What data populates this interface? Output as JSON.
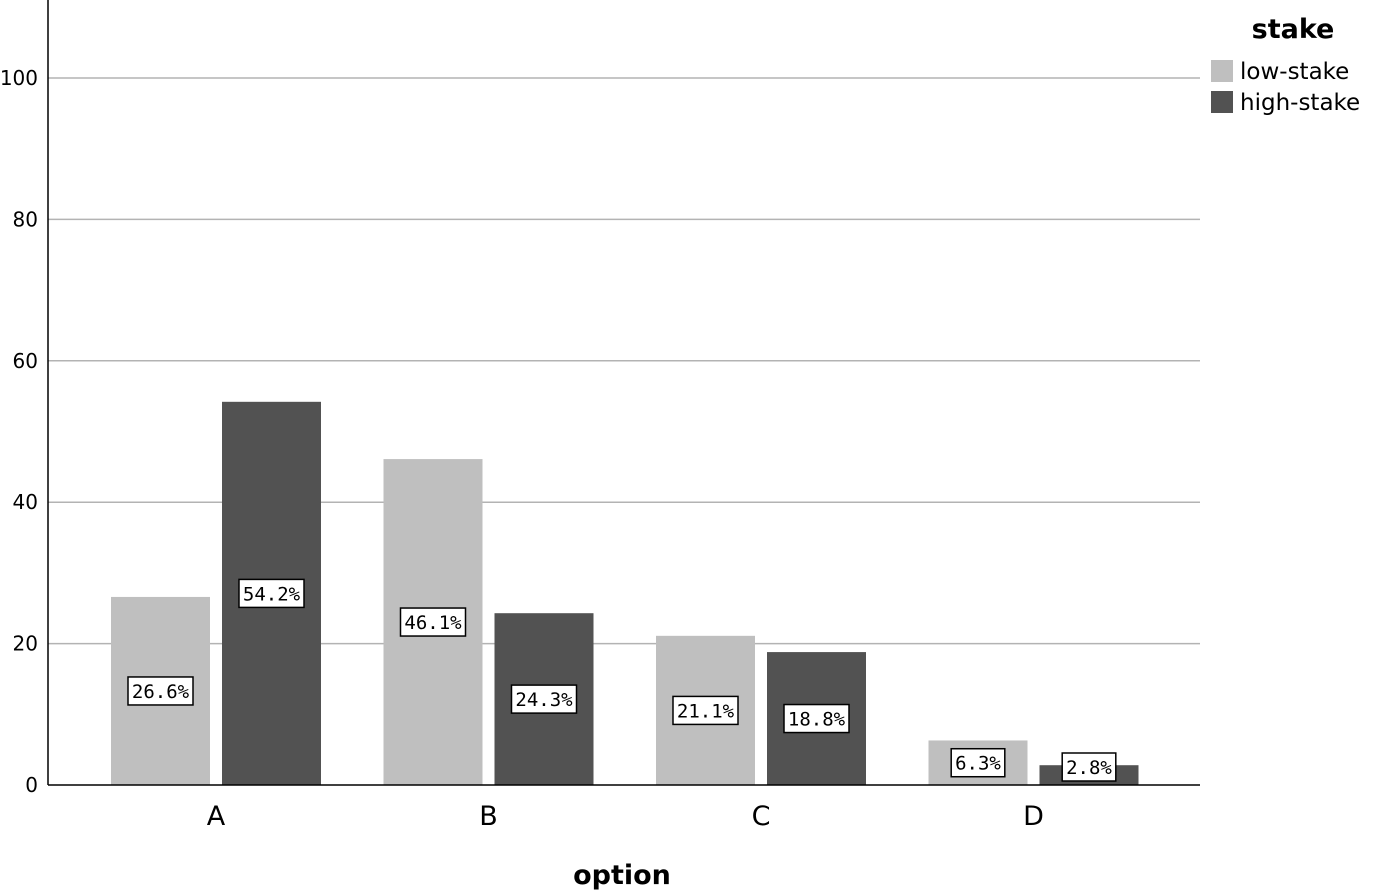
{
  "chart_data": {
    "type": "bar",
    "categories": [
      "A",
      "B",
      "C",
      "D"
    ],
    "series": [
      {
        "name": "low-stake",
        "values": [
          26.6,
          46.1,
          21.1,
          6.3
        ],
        "labels": [
          "26.6%",
          "46.1%",
          "21.1%",
          "6.3%"
        ],
        "color": "#bfbfbf"
      },
      {
        "name": "high-stake",
        "values": [
          54.2,
          24.3,
          18.8,
          2.8
        ],
        "labels": [
          "54.2%",
          "24.3%",
          "18.8%",
          "2.8%"
        ],
        "color": "#525252"
      }
    ],
    "xlabel": "option",
    "ylabel": "",
    "ylim": [
      0,
      110
    ],
    "yticks": [
      "0",
      "20",
      "40",
      "60",
      "80",
      "100"
    ],
    "legend_title": "stake",
    "legend_position": "top-right",
    "grid": true
  }
}
